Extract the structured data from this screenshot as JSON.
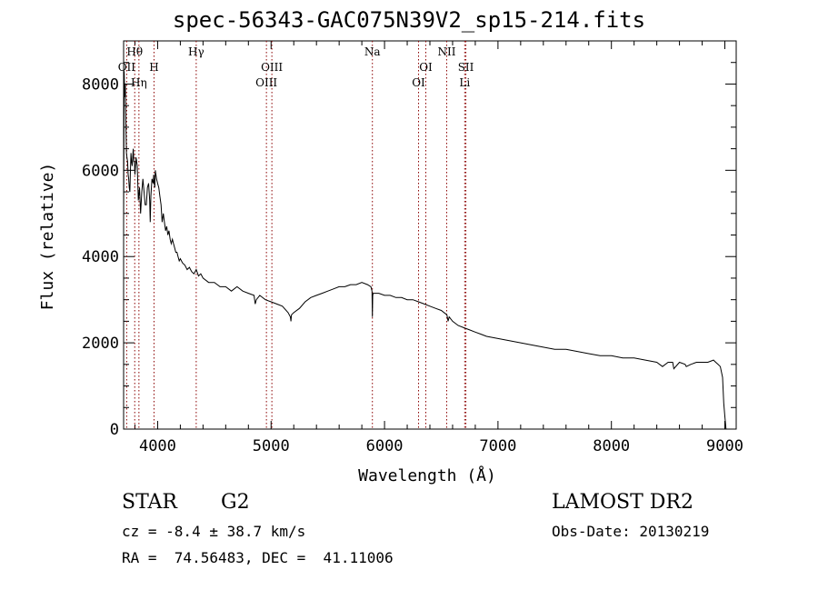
{
  "chart_data": {
    "type": "line",
    "title": "spec-56343-GAC075N39V2_sp15-214.fits",
    "xlabel": "Wavelength (Å)",
    "ylabel": "Flux (relative)",
    "xlim": [
      3700,
      9100
    ],
    "ylim": [
      0,
      9000
    ],
    "xticks": [
      4000,
      5000,
      6000,
      7000,
      8000,
      9000
    ],
    "yticks": [
      0,
      2000,
      4000,
      6000,
      8000
    ],
    "series": [
      {
        "name": "flux",
        "x": [
          3700,
          3705,
          3710,
          3715,
          3720,
          3725,
          3730,
          3735,
          3740,
          3745,
          3750,
          3755,
          3760,
          3765,
          3770,
          3775,
          3780,
          3785,
          3790,
          3795,
          3800,
          3810,
          3820,
          3830,
          3840,
          3850,
          3860,
          3870,
          3880,
          3890,
          3900,
          3910,
          3920,
          3930,
          3935,
          3940,
          3950,
          3960,
          3965,
          3970,
          3975,
          3980,
          3990,
          4000,
          4010,
          4020,
          4030,
          4040,
          4050,
          4060,
          4070,
          4080,
          4090,
          4100,
          4110,
          4120,
          4130,
          4140,
          4150,
          4160,
          4170,
          4180,
          4190,
          4200,
          4220,
          4240,
          4260,
          4280,
          4300,
          4320,
          4340,
          4360,
          4380,
          4400,
          4450,
          4500,
          4550,
          4600,
          4650,
          4700,
          4750,
          4800,
          4850,
          4860,
          4870,
          4900,
          4950,
          5000,
          5050,
          5100,
          5150,
          5170,
          5175,
          5180,
          5200,
          5250,
          5300,
          5350,
          5400,
          5450,
          5500,
          5550,
          5600,
          5650,
          5700,
          5750,
          5800,
          5850,
          5880,
          5890,
          5893,
          5896,
          5900,
          5920,
          5950,
          6000,
          6050,
          6100,
          6150,
          6200,
          6250,
          6300,
          6350,
          6400,
          6450,
          6500,
          6550,
          6560,
          6570,
          6600,
          6650,
          6700,
          6750,
          6800,
          6850,
          6900,
          7000,
          7100,
          7200,
          7300,
          7400,
          7500,
          7600,
          7700,
          7800,
          7900,
          8000,
          8100,
          8200,
          8300,
          8400,
          8450,
          8500,
          8540,
          8550,
          8600,
          8650,
          8660,
          8700,
          8750,
          8800,
          8850,
          8900,
          8920,
          8940,
          8960,
          8980,
          8990,
          9000,
          9010,
          9020
        ],
        "values": [
          4800,
          8300,
          7700,
          8000,
          7100,
          6400,
          6300,
          6200,
          5900,
          5800,
          5600,
          5500,
          6000,
          6400,
          6200,
          6100,
          6300,
          6500,
          6200,
          6200,
          5900,
          6300,
          6100,
          5300,
          5600,
          5000,
          5500,
          5800,
          5500,
          5200,
          5200,
          5600,
          5700,
          5300,
          4800,
          5400,
          5800,
          5700,
          5900,
          5700,
          5600,
          6000,
          5800,
          5700,
          5600,
          5400,
          5200,
          4800,
          5000,
          4800,
          4600,
          4700,
          4500,
          4600,
          4400,
          4300,
          4400,
          4300,
          4200,
          4100,
          4100,
          4000,
          3900,
          3950,
          3850,
          3800,
          3700,
          3750,
          3650,
          3600,
          3700,
          3550,
          3600,
          3500,
          3400,
          3400,
          3300,
          3300,
          3200,
          3300,
          3200,
          3150,
          3100,
          2900,
          3000,
          3100,
          3000,
          2950,
          2900,
          2850,
          2700,
          2600,
          2500,
          2650,
          2700,
          2800,
          2950,
          3050,
          3100,
          3150,
          3200,
          3250,
          3300,
          3300,
          3350,
          3350,
          3400,
          3350,
          3300,
          3200,
          2600,
          3100,
          3150,
          3150,
          3150,
          3100,
          3100,
          3050,
          3050,
          3000,
          3000,
          2950,
          2900,
          2850,
          2800,
          2750,
          2650,
          2500,
          2600,
          2500,
          2400,
          2350,
          2300,
          2250,
          2200,
          2150,
          2100,
          2050,
          2000,
          1950,
          1900,
          1850,
          1850,
          1800,
          1750,
          1700,
          1700,
          1650,
          1650,
          1600,
          1550,
          1450,
          1550,
          1550,
          1400,
          1550,
          1500,
          1450,
          1500,
          1550,
          1550,
          1550,
          1600,
          1550,
          1500,
          1450,
          1200,
          600,
          300,
          0,
          0
        ]
      }
    ],
    "line_annotations": [
      {
        "label": "Hθ",
        "x": 3798,
        "row": 1
      },
      {
        "label": "OII",
        "x": 3727,
        "row": 2
      },
      {
        "label": "Hη",
        "x": 3835,
        "row": 3
      },
      {
        "label": "H",
        "x": 3968,
        "row": 2
      },
      {
        "label": "Hγ",
        "x": 4340,
        "row": 1
      },
      {
        "label": "OIII",
        "x": 5007,
        "row": 2
      },
      {
        "label": "OIII",
        "x": 4959,
        "row": 3
      },
      {
        "label": "Na",
        "x": 5893,
        "row": 1
      },
      {
        "label": "OI",
        "x": 6364,
        "row": 2
      },
      {
        "label": "OI",
        "x": 6300,
        "row": 3
      },
      {
        "label": "NII",
        "x": 6548,
        "row": 1
      },
      {
        "label": "SII",
        "x": 6717,
        "row": 2
      },
      {
        "label": "Li",
        "x": 6707,
        "row": 3
      }
    ]
  },
  "info": {
    "object_type": "STAR",
    "subclass": "G2",
    "survey": "LAMOST DR2",
    "redshift": "cz = -8.4 ± 38.7 km/s",
    "obs_date": "Obs-Date: 20130219",
    "coords": "RA =  74.56483, DEC =  41.11006"
  }
}
